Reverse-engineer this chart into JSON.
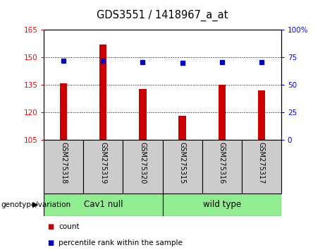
{
  "title": "GDS3551 / 1418967_a_at",
  "samples": [
    "GSM275318",
    "GSM275319",
    "GSM275320",
    "GSM275315",
    "GSM275316",
    "GSM275317"
  ],
  "count_values": [
    136,
    157,
    133,
    118,
    135,
    132
  ],
  "percentile_values": [
    72,
    72,
    71,
    70,
    71,
    71
  ],
  "ylim_left": [
    105,
    165
  ],
  "ylim_right": [
    0,
    100
  ],
  "yticks_left": [
    105,
    120,
    135,
    150,
    165
  ],
  "yticks_right": [
    0,
    25,
    50,
    75,
    100
  ],
  "ytick_right_labels": [
    "0",
    "25",
    "50",
    "75",
    "100%"
  ],
  "bar_color": "#cc0000",
  "dot_color": "#0000cc",
  "group1_label": "Cav1 null",
  "group2_label": "wild type",
  "group_label": "genotype/variation",
  "legend_count_label": "count",
  "legend_pct_label": "percentile rank within the sample",
  "tick_label_area_color": "#cccccc",
  "group_area_color": "#90ee90",
  "bar_width": 0.18
}
